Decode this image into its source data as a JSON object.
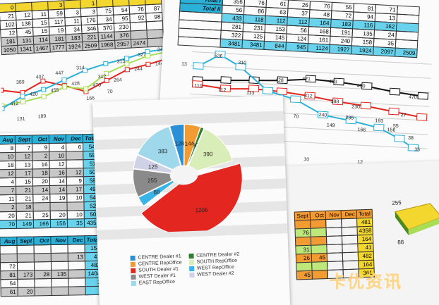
{
  "colors": {
    "cyan": "#2bb0d8",
    "yellow": "#f3d62e",
    "green": "#bfe87a",
    "red": "#e3261f",
    "orange": "#f29b33"
  },
  "top_left_table": {
    "rows": [
      [
        "0",
        "",
        "",
        "3",
        "",
        "1",
        "",
        "",
        "",
        ""
      ],
      [
        "21",
        "12",
        "11",
        "59",
        "3",
        "3",
        "75",
        "54",
        "76",
        "87"
      ],
      [
        "102",
        "138",
        "15",
        "117",
        "11",
        "176",
        "34",
        "95",
        "92",
        "98"
      ],
      [
        "12",
        "45",
        "15",
        "19",
        "34",
        "346",
        "370",
        "230",
        "",
        ""
      ],
      [
        "181",
        "131",
        "114",
        "181",
        "183",
        "221",
        "1144",
        "376",
        "",
        ""
      ],
      [
        "1050",
        "1341",
        "1467",
        "1777",
        "1924",
        "2509",
        "1968",
        "2957",
        "2474",
        ""
      ]
    ]
  },
  "left_chart_labels": [
    "389",
    "407",
    "447",
    "314",
    "312",
    "315",
    "327",
    "240",
    "412",
    "420",
    "455",
    "428",
    "470",
    "264",
    "244",
    "144",
    "166",
    "70",
    "131",
    "189",
    "CENTRE"
  ],
  "top_right_table": {
    "row_labels": [
      "Total I",
      "Total II"
    ],
    "rows": [
      [
        "356",
        "76",
        "61",
        "26",
        "76",
        "55",
        "81",
        "71"
      ],
      [
        "56",
        "86",
        "63",
        "37",
        "48",
        "72",
        "94",
        "13"
      ],
      [
        "433",
        "118",
        "112",
        "112",
        "164",
        "183",
        "116",
        "162"
      ],
      [
        "281",
        "231",
        "153",
        "56",
        "168",
        "191",
        "135",
        "24"
      ],
      [
        "322",
        "125",
        "145",
        "124",
        "161",
        "240",
        "158",
        "35"
      ],
      [
        "3481",
        "3481",
        "844",
        "945",
        "1124",
        "1927",
        "1924",
        "2097",
        "2509"
      ]
    ]
  },
  "top_right_chart": {
    "y_ticks": [
      "13",
      "8"
    ],
    "x_ticks": [
      "8",
      "10",
      "12",
      "14"
    ],
    "labels": [
      "536",
      "310",
      "110",
      "112",
      "113",
      "428",
      "421",
      "453",
      "450",
      "470",
      "188",
      "230",
      "312",
      "240",
      "235",
      "193",
      "70",
      "149",
      "166",
      "156",
      "38",
      "35",
      "27",
      "55"
    ]
  },
  "bottom_left_table": {
    "header": [
      "Aug",
      "Sept",
      "Oct",
      "Nov",
      "Dec",
      "Total"
    ],
    "rows": [
      [
        "8",
        "7",
        "9",
        "4",
        "6",
        "545"
      ],
      [
        "10",
        "12",
        "2",
        "10",
        "",
        "597"
      ],
      [
        "18",
        "13",
        "16",
        "12",
        "",
        "511"
      ],
      [
        "12",
        "17",
        "18",
        "16",
        "12",
        "501"
      ],
      [
        "4",
        "15",
        "20",
        "14",
        "9",
        "580"
      ],
      [
        "7",
        "21",
        "14",
        "14",
        "17",
        "492"
      ],
      [
        "11",
        "21",
        "24",
        "19",
        "10",
        "540"
      ],
      [
        "2",
        "18",
        "",
        "",
        "",
        "524"
      ],
      [
        "20",
        "21",
        "25",
        "20",
        "10",
        "505"
      ],
      [
        "70",
        "149",
        "166",
        "156",
        "35",
        "4358"
      ]
    ]
  },
  "bottom_left_table2": {
    "header": [
      "Aug",
      "Sept",
      "Oct",
      "Nov",
      "Dec",
      "Total"
    ],
    "rows": [
      [
        "",
        "",
        "",
        "",
        "",
        "154"
      ],
      [
        "",
        "",
        "",
        "",
        "13",
        "41"
      ],
      [
        "72",
        "",
        "",
        "",
        "",
        "482"
      ],
      [
        "81",
        "173",
        "28",
        "135",
        "",
        "1404"
      ],
      [
        "54",
        "",
        "",
        "",
        "",
        "1"
      ],
      [
        "61",
        "20",
        "",
        "",
        "",
        ""
      ]
    ]
  },
  "bottom_right_table": {
    "header": [
      "Sept",
      "Oct",
      "Nov",
      "Dec",
      "Total"
    ],
    "rows": [
      [
        "",
        "",
        "",
        "",
        "481"
      ],
      [
        "76",
        "",
        "",
        "",
        "4358"
      ],
      [
        "",
        "",
        "",
        "",
        "164"
      ],
      [
        "31",
        "",
        "",
        "",
        "41"
      ],
      [
        "26",
        "45",
        "",
        "",
        "482"
      ],
      [
        "",
        "",
        "",
        "",
        "164"
      ],
      [
        "45",
        "",
        "",
        "",
        "361"
      ]
    ]
  },
  "pie_chart": {
    "slices": [
      {
        "label": "CENTRE Dealer #1",
        "value": 128,
        "color": "#2a8fd6"
      },
      {
        "label": "CENTRE RepOffice",
        "value": 144,
        "color": "#f29b33"
      },
      {
        "label": "CENTRE Dealer #2",
        "value": 30,
        "color": "#2f7d2e"
      },
      {
        "label": "SOUTH RepOffice",
        "value": 390,
        "color": "#d9edb8"
      },
      {
        "label": "SOUTH Dealer #1",
        "value": 1206,
        "color": "#e3261f"
      },
      {
        "label": "WEST RepOffice",
        "value": 88,
        "color": "#3ab4e6"
      },
      {
        "label": "WEST Dealer #1",
        "value": 255,
        "color": "#8a8a8a"
      },
      {
        "label": "WEST Dealer #2",
        "value": 125,
        "color": "#cfd2e6"
      },
      {
        "label": "EAST RepOffice",
        "value": 383,
        "color": "#9fd8ea"
      }
    ],
    "value_labels": [
      "128",
      "144",
      "390",
      "1206",
      "88",
      "255",
      "125",
      "383"
    ],
    "legend_left": [
      {
        "label": "CENTRE Dealer #1",
        "color": "#2a8fd6"
      },
      {
        "label": "CENTRE RepOffice",
        "color": "#f29b33"
      },
      {
        "label": "SOUTH Dealer #1",
        "color": "#e3261f"
      },
      {
        "label": "WEST Dealer #1",
        "color": "#8a8a8a"
      },
      {
        "label": "EAST RepOffice",
        "color": "#9fd8ea"
      }
    ],
    "legend_right": [
      {
        "label": "CENTRE Dealer #2",
        "color": "#2f7d2e"
      },
      {
        "label": "SOUTH RepOffice",
        "color": "#d9edb8"
      },
      {
        "label": "WEST RepOffice",
        "color": "#3ab4e6"
      },
      {
        "label": "WEST Dealer #2",
        "color": "#cfd2e6"
      }
    ]
  },
  "right_3d_chart": {
    "labels": [
      "255",
      "88"
    ]
  },
  "watermark": "卡优资讯"
}
